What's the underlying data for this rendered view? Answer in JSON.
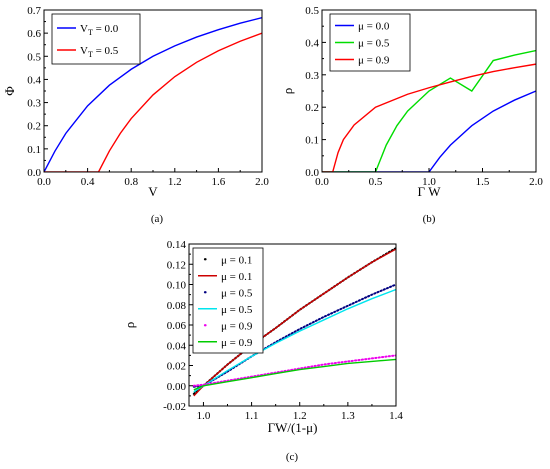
{
  "chart_data": [
    {
      "type": "line",
      "panel_label": "(a)",
      "xlabel": "V",
      "ylabel": "Φ",
      "xlim": [
        0,
        2.0
      ],
      "ylim": [
        0,
        0.7
      ],
      "xticks": [
        "0.0",
        "0.4",
        "0.8",
        "1.2",
        "1.6",
        "2.0"
      ],
      "yticks": [
        "0.0",
        "0.1",
        "0.2",
        "0.3",
        "0.4",
        "0.5",
        "0.6",
        "0.7"
      ],
      "legend": "top-left",
      "series": [
        {
          "name": "V",
          "name_sub": "T",
          "name_rest": " = 0.0",
          "color": "#0000ff",
          "x": [
            0,
            0.1,
            0.2,
            0.4,
            0.6,
            0.8,
            1.0,
            1.2,
            1.4,
            1.6,
            1.8,
            2.0
          ],
          "y": [
            0,
            0.09,
            0.167,
            0.286,
            0.375,
            0.444,
            0.5,
            0.545,
            0.583,
            0.615,
            0.643,
            0.667
          ]
        },
        {
          "name": "V",
          "name_sub": "T",
          "name_rest": " = 0.5",
          "color": "#ff0000",
          "x": [
            0,
            0.5,
            0.6,
            0.7,
            0.8,
            1.0,
            1.2,
            1.4,
            1.6,
            1.8,
            2.0
          ],
          "y": [
            0,
            0,
            0.091,
            0.167,
            0.231,
            0.333,
            0.412,
            0.474,
            0.524,
            0.565,
            0.6
          ]
        }
      ]
    },
    {
      "type": "line",
      "panel_label": "(b)",
      "xlabel": "Γ W",
      "ylabel": "ρ",
      "xlim": [
        0,
        2.0
      ],
      "ylim": [
        0,
        0.5
      ],
      "xticks": [
        "0.0",
        "0.5",
        "1.0",
        "1.5",
        "2.0"
      ],
      "yticks": [
        "0.0",
        "0.1",
        "0.2",
        "0.3",
        "0.4",
        "0.5"
      ],
      "legend": "top-left",
      "series": [
        {
          "name": "μ = 0.0",
          "color": "#0000ff",
          "x": [
            0,
            1.0,
            1.1,
            1.2,
            1.4,
            1.6,
            1.8,
            2.0
          ],
          "y": [
            0,
            0,
            0.045,
            0.083,
            0.143,
            0.188,
            0.222,
            0.25
          ]
        },
        {
          "name": "μ = 0.5",
          "color": "#00dd00",
          "x": [
            0,
            0.5,
            0.6,
            0.7,
            0.8,
            1.0,
            1.2,
            1.4,
            1.6,
            1.8,
            2.0
          ],
          "y": [
            0,
            0,
            0.083,
            0.143,
            0.188,
            0.25,
            0.29,
            0.25,
            0.344,
            0.361,
            0.375
          ]
        },
        {
          "name": "μ = 0.9",
          "color": "#ff0000",
          "x": [
            0,
            0.1,
            0.15,
            0.2,
            0.3,
            0.5,
            0.8,
            1.0,
            1.2,
            1.4,
            1.6,
            1.8,
            2.0
          ],
          "y": [
            0,
            0,
            0.06,
            0.1,
            0.145,
            0.2,
            0.24,
            0.26,
            0.278,
            0.295,
            0.31,
            0.322,
            0.333
          ]
        }
      ]
    },
    {
      "type": "line",
      "panel_label": "(c)",
      "xlabel": "ΓW/(1-μ)",
      "ylabel": "ρ",
      "xlim": [
        0.97,
        1.4
      ],
      "ylim": [
        -0.02,
        0.14
      ],
      "xticks": [
        "1.0",
        "1.1",
        "1.2",
        "1.3",
        "1.4"
      ],
      "yticks": [
        "-0.02",
        "0.00",
        "0.02",
        "0.04",
        "0.06",
        "0.08",
        "0.10",
        "0.12",
        "0.14"
      ],
      "legend": "top-left",
      "series": [
        {
          "name": "μ = 0.1",
          "style": "dotted",
          "color": "#000000",
          "x": [
            0.98,
            1.0,
            1.05,
            1.1,
            1.15,
            1.2,
            1.25,
            1.3,
            1.35,
            1.4
          ],
          "y": [
            -0.008,
            0.0,
            0.021,
            0.04,
            0.057,
            0.075,
            0.091,
            0.107,
            0.122,
            0.136
          ]
        },
        {
          "name": "μ = 0.1",
          "style": "solid",
          "color": "#cc0000",
          "x": [
            0.98,
            1.0,
            1.05,
            1.1,
            1.15,
            1.2,
            1.25,
            1.3,
            1.35,
            1.4
          ],
          "y": [
            -0.01,
            0.0,
            0.021,
            0.04,
            0.057,
            0.075,
            0.091,
            0.107,
            0.122,
            0.135
          ]
        },
        {
          "name": "μ = 0.5",
          "style": "dotted",
          "color": "#000080",
          "x": [
            0.98,
            1.0,
            1.05,
            1.1,
            1.15,
            1.2,
            1.25,
            1.3,
            1.35,
            1.4
          ],
          "y": [
            -0.001,
            0.0,
            0.014,
            0.029,
            0.043,
            0.056,
            0.068,
            0.079,
            0.09,
            0.1
          ]
        },
        {
          "name": "μ = 0.5",
          "style": "solid",
          "color": "#00e5ee",
          "x": [
            0.98,
            1.0,
            1.05,
            1.1,
            1.15,
            1.2,
            1.25,
            1.3,
            1.35,
            1.4
          ],
          "y": [
            -0.006,
            0.0,
            0.015,
            0.029,
            0.042,
            0.054,
            0.065,
            0.076,
            0.086,
            0.095
          ]
        },
        {
          "name": "μ = 0.9",
          "style": "dotted",
          "color": "#ee00ee",
          "x": [
            0.98,
            1.0,
            1.05,
            1.1,
            1.15,
            1.2,
            1.25,
            1.3,
            1.35,
            1.4
          ],
          "y": [
            0.0,
            0.001,
            0.005,
            0.009,
            0.013,
            0.017,
            0.021,
            0.024,
            0.027,
            0.03
          ]
        },
        {
          "name": "μ = 0.9",
          "style": "solid",
          "color": "#00cc00",
          "x": [
            0.98,
            1.0,
            1.05,
            1.1,
            1.15,
            1.2,
            1.25,
            1.3,
            1.35,
            1.4
          ],
          "y": [
            -0.004,
            0.0,
            0.004,
            0.008,
            0.012,
            0.016,
            0.019,
            0.022,
            0.024,
            0.026
          ]
        }
      ]
    }
  ]
}
